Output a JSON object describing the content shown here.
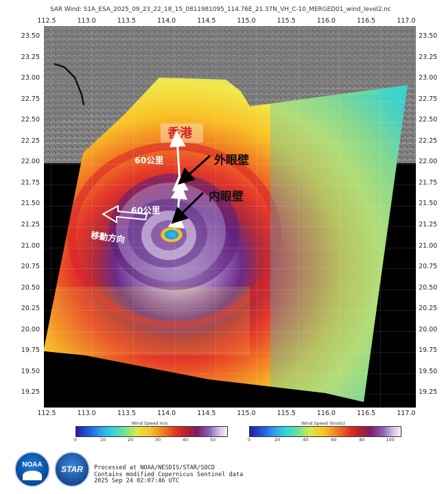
{
  "title": "SAR Wind: S1A_ESA_2025_09_23_22_18_15_0811981095_114.76E_21.37N_VH_C-10_MERGED01_wind_level2.nc",
  "axes": {
    "lon_ticks": [
      "112.5",
      "113.0",
      "113.5",
      "114.0",
      "114.5",
      "115.0",
      "115.5",
      "116.0",
      "116.5",
      "117.0"
    ],
    "lat_ticks": [
      "23.50",
      "23.25",
      "23.00",
      "22.75",
      "22.50",
      "22.25",
      "22.00",
      "21.75",
      "21.50",
      "21.25",
      "21.00",
      "20.75",
      "20.50",
      "20.25",
      "20.00",
      "19.75",
      "19.50",
      "19.25"
    ],
    "lon_range": [
      112.5,
      117.0
    ],
    "lat_range": [
      19.1,
      23.6
    ],
    "grid": true
  },
  "annotations": {
    "hong_kong": "香港",
    "outer_eyewall": "外眼壁",
    "inner_eyewall": "内眼壁",
    "distance_upper": "60公里",
    "distance_lower": "60公里",
    "movement": "移動方向",
    "arrow_color": "#ffffff",
    "label_color": "#d4202a"
  },
  "colorbars": [
    {
      "title": "Wind Speed m/s",
      "ticks": [
        "0",
        "10",
        "20",
        "30",
        "40",
        "50"
      ],
      "range": [
        0,
        55
      ]
    },
    {
      "title": "Wind Speed (knots)",
      "ticks": [
        "0",
        "20",
        "40",
        "60",
        "80",
        "100"
      ],
      "range": [
        0,
        107
      ]
    }
  ],
  "logos": {
    "noaa": "NOAA",
    "star": "STAR"
  },
  "credits": {
    "line1": "Processed at NOAA/NESDIS/STAR/SOCD",
    "line2": "Contains modified Copernicus Sentinel data",
    "line3": "2025 Sep 24 02:07:46 UTC"
  }
}
